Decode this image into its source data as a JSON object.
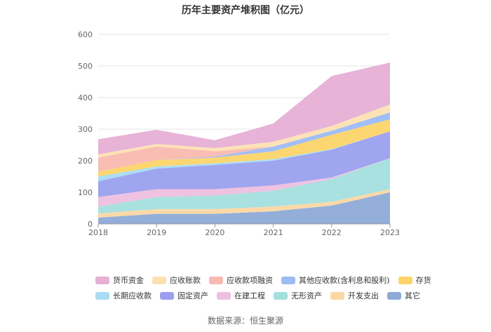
{
  "chart_data": {
    "type": "area",
    "stacked": true,
    "title": "历年主要资产堆积图（亿元）",
    "categories": [
      "2018",
      "2019",
      "2020",
      "2021",
      "2022",
      "2023"
    ],
    "ylim": [
      0,
      600
    ],
    "yticks": [
      0,
      100,
      200,
      300,
      400,
      500,
      600
    ],
    "grid": true,
    "legend_position": "bottom",
    "series": [
      {
        "name": "其它",
        "color": "#8eaad8",
        "values": [
          20,
          32,
          32,
          40,
          58,
          100
        ]
      },
      {
        "name": "开发支出",
        "color": "#fbd7a2",
        "values": [
          13,
          15,
          15,
          15,
          12,
          10
        ]
      },
      {
        "name": "无形资产",
        "color": "#a3dfde",
        "values": [
          22,
          38,
          43,
          50,
          72,
          98
        ]
      },
      {
        "name": "在建工程",
        "color": "#eebfdf",
        "values": [
          30,
          25,
          20,
          17,
          5,
          0
        ]
      },
      {
        "name": "固定资产",
        "color": "#9aa0ee",
        "values": [
          50,
          65,
          77,
          78,
          88,
          85
        ]
      },
      {
        "name": "长期应收款",
        "color": "#a7dcf3",
        "values": [
          15,
          7,
          5,
          5,
          2,
          0
        ]
      },
      {
        "name": "存货",
        "color": "#fcd468",
        "values": [
          15,
          20,
          18,
          25,
          45,
          38
        ]
      },
      {
        "name": "其他应收款(含利息和股利)",
        "color": "#9dbbf5",
        "values": [
          0,
          0,
          3,
          15,
          13,
          22
        ]
      },
      {
        "name": "应收款项融资",
        "color": "#f9b9b0",
        "values": [
          45,
          43,
          17,
          0,
          0,
          0
        ]
      },
      {
        "name": "应收账款",
        "color": "#fde0b2",
        "values": [
          10,
          8,
          10,
          15,
          15,
          25
        ]
      },
      {
        "name": "货币资金",
        "color": "#e6afd5",
        "values": [
          48,
          45,
          25,
          58,
          158,
          133
        ]
      }
    ],
    "legend_order": [
      "货币资金",
      "应收账款",
      "应收款项融资",
      "其他应收款(含利息和股利)",
      "存货",
      "长期应收款",
      "固定资产",
      "在建工程",
      "无形资产",
      "开发支出",
      "其它"
    ]
  },
  "source_note": "数据来源：恒生聚源"
}
